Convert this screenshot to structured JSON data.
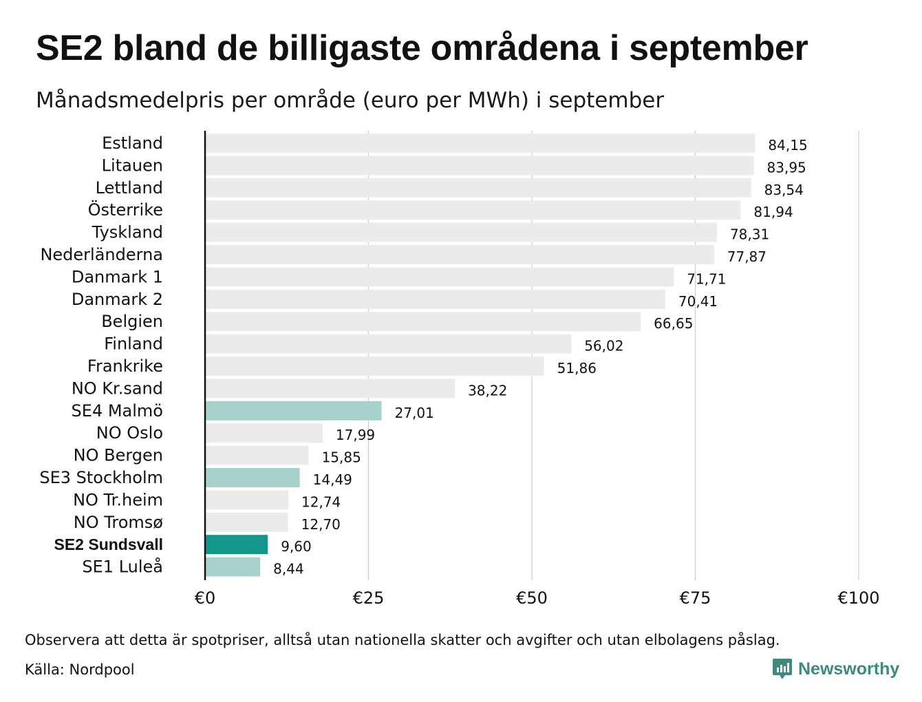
{
  "title": "SE2 bland de billigaste områdena i september",
  "subtitle": "Månadsmedelpris per område (euro per MWh) i september",
  "note": "Observera att detta är spotpriser, alltså utan nationella skatter och avgifter och utan elbolagens påslag.",
  "source": "Källa: Nordpool",
  "brand": {
    "name": "Newsworthy",
    "icon": "newsworthy-logo-icon"
  },
  "colors": {
    "default": "#ebebeb",
    "swedish": "#a7d1cb",
    "highlight": "#14968a",
    "grid": "#cccccc",
    "axis": "#111111"
  },
  "chart_data": {
    "type": "bar",
    "orientation": "horizontal",
    "title": "SE2 bland de billigaste områdena i september",
    "subtitle": "Månadsmedelpris per område (euro per MWh) i september",
    "xlim": [
      0,
      100
    ],
    "x_ticks": [
      0,
      25,
      50,
      75,
      100
    ],
    "x_tick_labels": [
      "€0",
      "€25",
      "€50",
      "€75",
      "€100"
    ],
    "grid": "vertical",
    "categories": [
      "Estland",
      "Litauen",
      "Lettland",
      "Österrike",
      "Tyskland",
      "Nederländerna",
      "Danmark 1",
      "Danmark 2",
      "Belgien",
      "Finland",
      "Frankrike",
      "NO Kr.sand",
      "SE4 Malmö",
      "NO Oslo",
      "NO Bergen",
      "SE3 Stockholm",
      "NO Tr.heim",
      "NO Tromsø",
      "SE2 Sundsvall",
      "SE1 Luleå"
    ],
    "values": [
      84.15,
      83.95,
      83.54,
      81.94,
      78.31,
      77.87,
      71.71,
      70.41,
      66.65,
      56.02,
      51.86,
      38.22,
      27.01,
      17.99,
      15.85,
      14.49,
      12.74,
      12.7,
      9.6,
      8.44
    ],
    "value_labels": [
      "84,15",
      "83,95",
      "83,54",
      "81,94",
      "78,31",
      "77,87",
      "71,71",
      "70,41",
      "66,65",
      "56,02",
      "51,86",
      "38,22",
      "27,01",
      "17,99",
      "15,85",
      "14,49",
      "12,74",
      "12,70",
      "9,60",
      "8,44"
    ],
    "bar_group": [
      "default",
      "default",
      "default",
      "default",
      "default",
      "default",
      "default",
      "default",
      "default",
      "default",
      "default",
      "default",
      "swedish",
      "default",
      "default",
      "swedish",
      "default",
      "default",
      "highlight",
      "swedish"
    ],
    "highlighted_category": "SE2 Sundsvall"
  }
}
